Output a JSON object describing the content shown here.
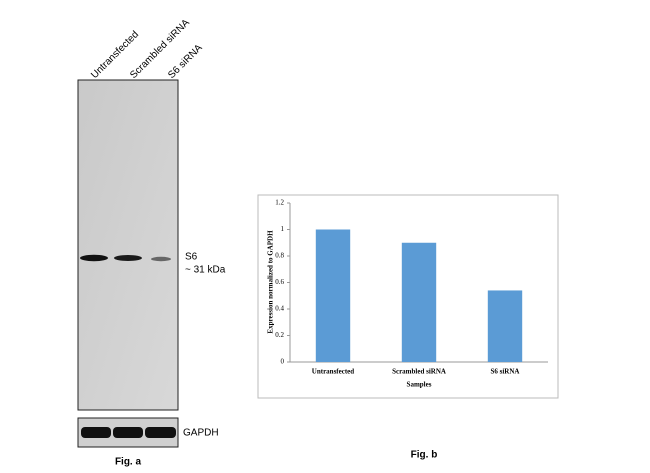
{
  "blot": {
    "lanes": [
      "Untransfected",
      "Scrambled siRNA",
      "S6 siRNA"
    ],
    "band_label": "S6",
    "band_size": "~ 31 kDa",
    "loading_label": "GAPDH",
    "caption": "Fig. a"
  },
  "chart_data": {
    "type": "bar",
    "y_label": "Expression normalized to GAPDH",
    "x_label": "Samples",
    "categories": [
      "Untransfected",
      "Scrambled siRNA",
      "S6 siRNA"
    ],
    "values": [
      1.0,
      0.9,
      0.54
    ],
    "color": "#5b9bd5",
    "ylim": [
      0,
      1.2
    ],
    "yticks": [
      0,
      0.2,
      0.4,
      0.6,
      0.8,
      1,
      1.2
    ],
    "grid": false,
    "caption": "Fig. b"
  }
}
